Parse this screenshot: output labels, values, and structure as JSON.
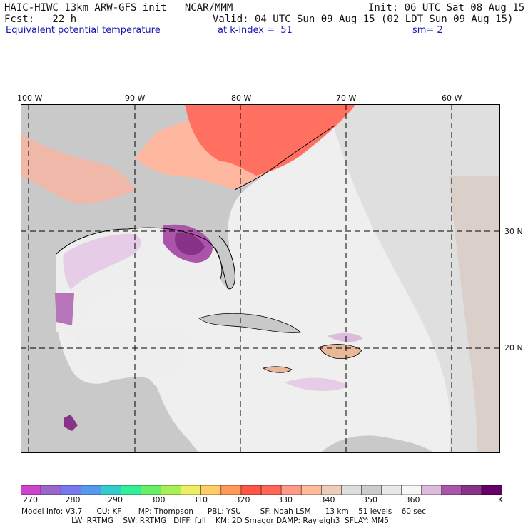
{
  "header": {
    "model_line": "HAIC-HIWC 13km ARW-GFS init   NCAR/MMM",
    "init": "Init: 06 UTC Sat 08 Aug 15",
    "fcst": "Fcst:   22 h",
    "valid": "Valid: 04 UTC Sun 09 Aug 15 (02 LDT Sun 09 Aug 15)",
    "field": "Equivalent potential temperature",
    "level": "at k-index =  51",
    "smooth": "sm= 2"
  },
  "map": {
    "lon_labels": [
      "100 W",
      "90 W",
      "80 W",
      "70 W",
      "60 W"
    ],
    "lat_labels": [
      "30 N",
      "20 N"
    ],
    "colors": {
      "ocean": "#efefef",
      "land": "#c9c9c9",
      "coast": "#000000",
      "grid": "#000000"
    }
  },
  "colorbar": {
    "ticks": [
      "270",
      "280",
      "290",
      "300",
      "310",
      "320",
      "330",
      "340",
      "350",
      "360"
    ],
    "unit": "K",
    "colors": [
      "#cc44cc",
      "#9966cc",
      "#7777ee",
      "#5599ee",
      "#33cccc",
      "#33ee99",
      "#66ee66",
      "#aaee55",
      "#eeee66",
      "#ffcc66",
      "#ff9955",
      "#ff5544",
      "#ff6655",
      "#ff9988",
      "#ffbb99",
      "#eeccbb",
      "#dddddd",
      "#cccccc",
      "#e8e8e8",
      "#f6f6f6",
      "#ddbbdd",
      "#aa55aa",
      "#883388",
      "#660066"
    ]
  },
  "model_info": {
    "line1": "Model Info: V3.7      CU: KF       MP: Thompson      PBL: YSU        SF: Noah LSM      13 km    51 levels    60 sec",
    "line2": "                     LW: RRTMG    SW: RRTMG   DIFF: full    KM: 2D Smagor DAMP: Rayleigh3  SFLAY: MM5"
  }
}
